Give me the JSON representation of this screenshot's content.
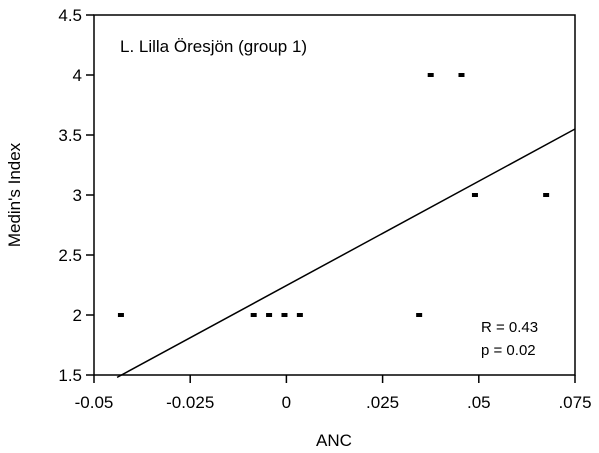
{
  "chart_data": {
    "type": "scatter",
    "title": "L. Lilla    Öresjön (group 1)",
    "xlabel": "ANC",
    "ylabel": "Medin's Index",
    "xlim": [
      -0.05,
      0.075
    ],
    "ylim": [
      1.5,
      4.5
    ],
    "x_ticks": [
      -0.05,
      -0.025,
      0,
      0.025,
      0.05,
      0.075
    ],
    "x_tick_labels": [
      "-0.05",
      "-0.025",
      "0",
      ".025",
      ".05",
      ".075"
    ],
    "y_ticks": [
      1.5,
      2,
      2.5,
      3,
      3.5,
      4,
      4.5
    ],
    "y_tick_labels": [
      "1.5",
      "2",
      "2.5",
      "3",
      "3.5",
      "4",
      "4.5"
    ],
    "points": [
      {
        "x": -0.043,
        "y": 2
      },
      {
        "x": -0.0085,
        "y": 2
      },
      {
        "x": -0.0045,
        "y": 2
      },
      {
        "x": -0.0005,
        "y": 2
      },
      {
        "x": 0.0035,
        "y": 2
      },
      {
        "x": 0.0345,
        "y": 2
      },
      {
        "x": 0.0375,
        "y": 4
      },
      {
        "x": 0.0455,
        "y": 4
      },
      {
        "x": 0.049,
        "y": 3
      },
      {
        "x": 0.0675,
        "y": 3
      }
    ],
    "fit_line": {
      "x": [
        -0.044,
        0.075
      ],
      "y": [
        1.48,
        3.55
      ]
    },
    "stats": [
      "R = 0.43",
      "p = 0.02"
    ],
    "grid": false,
    "legend": "none"
  }
}
